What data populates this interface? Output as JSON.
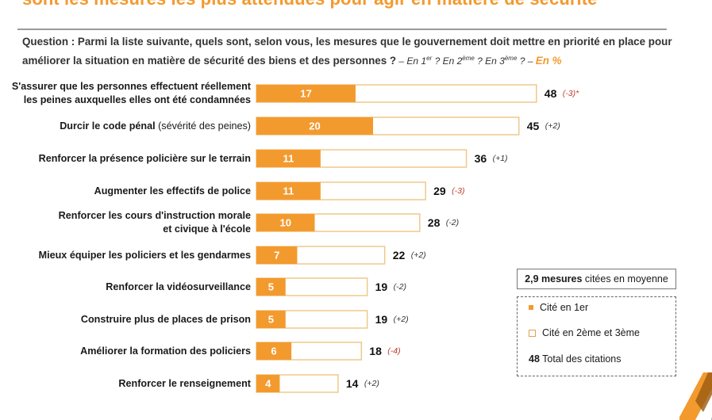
{
  "header": {
    "title": "sont les mesures les plus attendues pour agir en matière de sécurité",
    "question_main": "Question : Parmi la liste suivante, quels sont, selon vous, les mesures que le gouvernement doit mettre en priorité en place pour améliorer la situation en matière de sécurité des biens et des personnes ?",
    "question_suffix_1": " – En 1",
    "sup_1": "er",
    "question_suffix_2": " ? En 2",
    "sup_2": "ème",
    "question_suffix_3": " ? En 3",
    "sup_3": "ème",
    "question_suffix_4": " ? – ",
    "unit": "En %"
  },
  "chart_data": {
    "type": "bar",
    "orientation": "horizontal",
    "stacked": true,
    "title": "",
    "xlabel": "",
    "ylabel": "",
    "xlim": [
      0,
      48
    ],
    "grid": false,
    "legend_position": "right",
    "colors": {
      "first": "#f39a2e",
      "rest": "#ffffff",
      "rest_border": "#f0c88a",
      "delta_negative": "#c0392b",
      "delta_neutral": "#333333"
    },
    "categories": [
      {
        "bold": "S'assurer que les personnes effectuent réellement",
        "bold2": "les peines auxquelles elles ont été condamnées",
        "light": ""
      },
      {
        "bold": "Durcir le code pénal",
        "bold2": "",
        "light": " (sévérité des peines)"
      },
      {
        "bold": "Renforcer la présence policière sur le terrain",
        "bold2": "",
        "light": ""
      },
      {
        "bold": "Augmenter les effectifs de police",
        "bold2": "",
        "light": ""
      },
      {
        "bold": "Renforcer les cours d'instruction morale",
        "bold2": "et civique à l'école",
        "light": ""
      },
      {
        "bold": "Mieux équiper les policiers et les gendarmes",
        "bold2": "",
        "light": ""
      },
      {
        "bold": "Renforcer la vidéosurveillance",
        "bold2": "",
        "light": ""
      },
      {
        "bold": "Construire plus de places de prison",
        "bold2": "",
        "light": ""
      },
      {
        "bold": "Améliorer la formation des policiers",
        "bold2": "",
        "light": ""
      },
      {
        "bold": "Renforcer le renseignement",
        "bold2": "",
        "light": ""
      }
    ],
    "series": [
      {
        "name": "Cité en 1er",
        "values": [
          17,
          20,
          11,
          11,
          10,
          7,
          5,
          5,
          6,
          4
        ]
      },
      {
        "name": "Total des citations",
        "values": [
          48,
          45,
          36,
          29,
          28,
          22,
          19,
          19,
          18,
          14
        ]
      }
    ],
    "deltas": [
      "(-3)",
      "(+2)",
      "(+1)",
      "(-3)",
      "(-2)",
      "(+2)",
      "(-2)",
      "(+2)",
      "(-4)",
      "(+2)"
    ],
    "delta_negative_red": [
      true,
      false,
      false,
      true,
      false,
      false,
      false,
      false,
      true,
      false
    ],
    "first_footnote": "*"
  },
  "note": {
    "bold": "2,9 mesures",
    "rest": " citées en moyenne"
  },
  "legend": {
    "first": "Cité en 1er",
    "rest": "Cité en 2ème et 3ème",
    "total_value": "48",
    "total_label": " Total des citations"
  }
}
